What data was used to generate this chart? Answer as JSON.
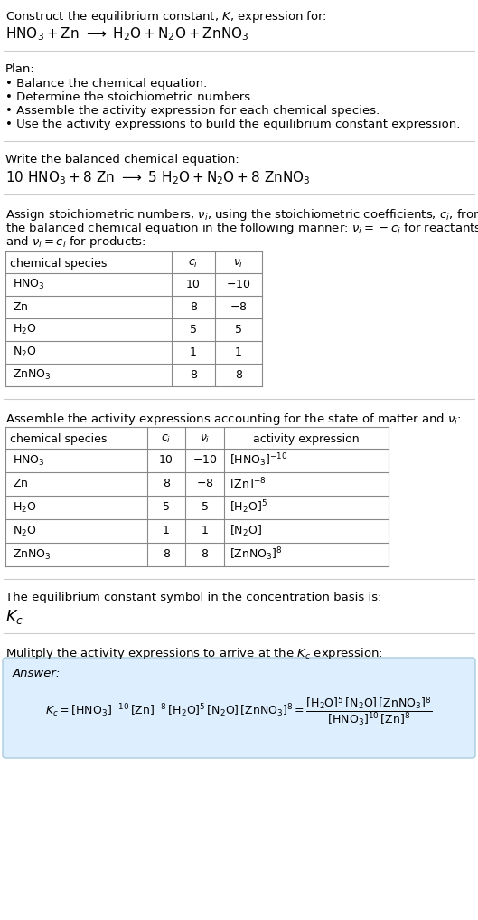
{
  "title_line1": "Construct the equilibrium constant, $K$, expression for:",
  "title_line2_plain": "HNO",
  "plan_header": "Plan:",
  "plan_items": [
    "• Balance the chemical equation.",
    "• Determine the stoichiometric numbers.",
    "• Assemble the activity expression for each chemical species.",
    "• Use the activity expressions to build the equilibrium constant expression."
  ],
  "balanced_header": "Write the balanced chemical equation:",
  "stoich_intro": "Assign stoichiometric numbers, $\\nu_i$, using the stoichiometric coefficients, $c_i$, from\nthe balanced chemical equation in the following manner: $\\nu_i = -c_i$ for reactants\nand $\\nu_i = c_i$ for products:",
  "table1_rows": [
    [
      "$\\mathrm{HNO_3}$",
      "10",
      "$-10$"
    ],
    [
      "$\\mathrm{Zn}$",
      "8",
      "$-8$"
    ],
    [
      "$\\mathrm{H_2O}$",
      "5",
      "5"
    ],
    [
      "$\\mathrm{N_2O}$",
      "1",
      "1"
    ],
    [
      "$\\mathrm{ZnNO_3}$",
      "8",
      "8"
    ]
  ],
  "activity_header": "Assemble the activity expressions accounting for the state of matter and $\\nu_i$:",
  "table2_rows": [
    [
      "$\\mathrm{HNO_3}$",
      "10",
      "$-10$",
      "$[\\mathrm{HNO_3}]^{-10}$"
    ],
    [
      "$\\mathrm{Zn}$",
      "8",
      "$-8$",
      "$[\\mathrm{Zn}]^{-8}$"
    ],
    [
      "$\\mathrm{H_2O}$",
      "5",
      "5",
      "$[\\mathrm{H_2O}]^5$"
    ],
    [
      "$\\mathrm{N_2O}$",
      "1",
      "1",
      "$[\\mathrm{N_2O}]$"
    ],
    [
      "$\\mathrm{ZnNO_3}$",
      "8",
      "8",
      "$[\\mathrm{ZnNO_3}]^8$"
    ]
  ],
  "kc_header": "The equilibrium constant symbol in the concentration basis is:",
  "kc_symbol": "$K_c$",
  "multiply_header": "Mulitply the activity expressions to arrive at the $K_c$ expression:",
  "bg_color": "#ffffff",
  "answer_box_bg": "#ddeeff",
  "answer_box_border": "#aaccdd"
}
